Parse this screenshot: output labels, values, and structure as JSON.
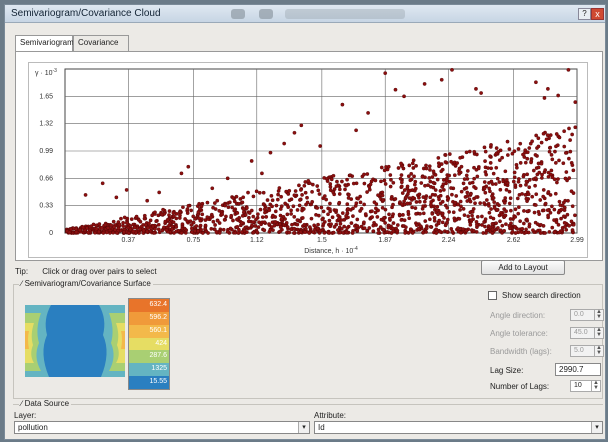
{
  "window": {
    "title": "Semivariogram/Covariance Cloud",
    "help_label": "?",
    "close_label": "x"
  },
  "tabs": [
    {
      "label": "Semivariogram",
      "active": true
    },
    {
      "label": "Covariance",
      "active": false
    }
  ],
  "chart_data": {
    "type": "scatter",
    "ylabel_prefix": "γ · 10",
    "ylabel_exp": "-3",
    "xlabel": "Distance, h · 10",
    "xlabel_exp": "-4",
    "x_ticks": [
      "0.37",
      "0.75",
      "1.12",
      "1.5",
      "1.87",
      "2.24",
      "2.62",
      "2.99"
    ],
    "y_ticks": [
      "0",
      "0.33",
      "0.66",
      "0.99",
      "1.32",
      "1.65"
    ],
    "xlim": [
      0,
      2.99
    ],
    "ylim": [
      0,
      1.98
    ],
    "point_color": "#8b0f0f",
    "grid": true,
    "outliers": [
      {
        "x": 0.12,
        "y": 0.46
      },
      {
        "x": 0.22,
        "y": 0.6
      },
      {
        "x": 0.3,
        "y": 0.43
      },
      {
        "x": 0.36,
        "y": 0.52
      },
      {
        "x": 0.48,
        "y": 0.39
      },
      {
        "x": 0.55,
        "y": 0.49
      },
      {
        "x": 0.68,
        "y": 0.72
      },
      {
        "x": 0.72,
        "y": 0.8
      },
      {
        "x": 0.86,
        "y": 0.54
      },
      {
        "x": 0.95,
        "y": 0.66
      },
      {
        "x": 1.09,
        "y": 0.87
      },
      {
        "x": 1.15,
        "y": 0.72
      },
      {
        "x": 1.2,
        "y": 0.97
      },
      {
        "x": 1.28,
        "y": 1.08
      },
      {
        "x": 1.38,
        "y": 1.3
      },
      {
        "x": 1.49,
        "y": 1.05
      },
      {
        "x": 1.62,
        "y": 1.55
      },
      {
        "x": 1.7,
        "y": 1.24
      },
      {
        "x": 1.77,
        "y": 1.45
      },
      {
        "x": 1.87,
        "y": 1.93
      },
      {
        "x": 1.93,
        "y": 1.73
      },
      {
        "x": 1.98,
        "y": 1.65
      },
      {
        "x": 2.1,
        "y": 1.8
      },
      {
        "x": 2.26,
        "y": 1.97
      },
      {
        "x": 2.4,
        "y": 1.74
      },
      {
        "x": 2.43,
        "y": 1.69
      },
      {
        "x": 2.52,
        "y": 0.96
      },
      {
        "x": 2.58,
        "y": 0.64
      },
      {
        "x": 2.75,
        "y": 1.82
      },
      {
        "x": 2.82,
        "y": 1.74
      },
      {
        "x": 2.88,
        "y": 1.66
      },
      {
        "x": 2.94,
        "y": 1.97
      },
      {
        "x": 2.98,
        "y": 1.58
      },
      {
        "x": 2.8,
        "y": 1.63
      },
      {
        "x": 1.34,
        "y": 1.21
      },
      {
        "x": 2.2,
        "y": 1.85
      }
    ]
  },
  "tip": {
    "label": "Tip:",
    "text": "Click or drag over pairs to select"
  },
  "add_to_layout": "Add to Layout",
  "surface": {
    "title": "Semivariogram/Covariance Surface",
    "legend": [
      {
        "value": "632.4",
        "color": "#e8742a"
      },
      {
        "value": "596.2",
        "color": "#f09a3a"
      },
      {
        "value": "560.1",
        "color": "#f3b94a"
      },
      {
        "value": "424",
        "color": "#e6dd63"
      },
      {
        "value": "287.6",
        "color": "#a9cf73"
      },
      {
        "value": "1325",
        "color": "#64b4c2"
      },
      {
        "value": "15.55",
        "color": "#2a7fc0"
      }
    ]
  },
  "search": {
    "show_direction": "Show search direction",
    "angle_direction_label": "Angle direction:",
    "angle_direction": "0.0",
    "angle_tolerance_label": "Angle tolerance:",
    "angle_tolerance": "45.0",
    "bandwidth_label": "Bandwidth (lags):",
    "bandwidth": "5.0",
    "lag_size_label": "Lag Size:",
    "lag_size": "2990.7",
    "num_lags_label": "Number of Lags:",
    "num_lags": "10"
  },
  "data_source": {
    "title": "Data Source",
    "layer_label": "Layer:",
    "layer_value": "pollution",
    "attribute_label": "Attribute:",
    "attribute_value": "Id"
  }
}
